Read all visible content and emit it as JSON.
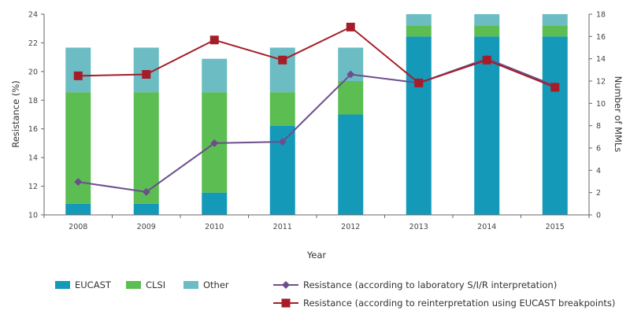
{
  "chart_data": {
    "type": "bar",
    "categories": [
      "2008",
      "2009",
      "2010",
      "2011",
      "2012",
      "2013",
      "2014",
      "2015"
    ],
    "xlabel": "Year",
    "ylabel_left": "Resistance (%)",
    "ylabel_right": "Number of MMLs",
    "ylim_left": [
      10,
      24
    ],
    "yticks_left": [
      10,
      12,
      14,
      16,
      18,
      20,
      22,
      24
    ],
    "ylim_right": [
      0,
      18
    ],
    "yticks_right": [
      0,
      2,
      4,
      6,
      8,
      10,
      12,
      14,
      16,
      18
    ],
    "stacked_series": [
      {
        "name": "EUCAST",
        "color": "#1499b9",
        "values": [
          1,
          1,
          2,
          8,
          9,
          16,
          16,
          16
        ]
      },
      {
        "name": "CLSI",
        "color": "#5cbd52",
        "values": [
          10,
          10,
          9,
          3,
          3,
          1,
          1,
          1
        ]
      },
      {
        "name": "Other",
        "color": "#6cbcc4",
        "values": [
          4,
          4,
          3,
          4,
          3,
          1,
          1,
          1
        ]
      }
    ],
    "line_series": [
      {
        "name": "Resistance (according to laboratory S/I/R interpretation)",
        "color": "#6b4f8c",
        "marker": "diamond",
        "values": [
          12.3,
          11.6,
          15.0,
          15.1,
          19.8,
          19.2,
          20.9,
          19.0
        ]
      },
      {
        "name": "Resistance (according to reinterpretation using EUCAST breakpoints)",
        "color": "#a51d29",
        "marker": "square",
        "values": [
          19.7,
          19.8,
          22.2,
          20.8,
          23.1,
          19.2,
          20.8,
          18.9
        ]
      }
    ],
    "grid": false,
    "legend_position": "bottom"
  }
}
